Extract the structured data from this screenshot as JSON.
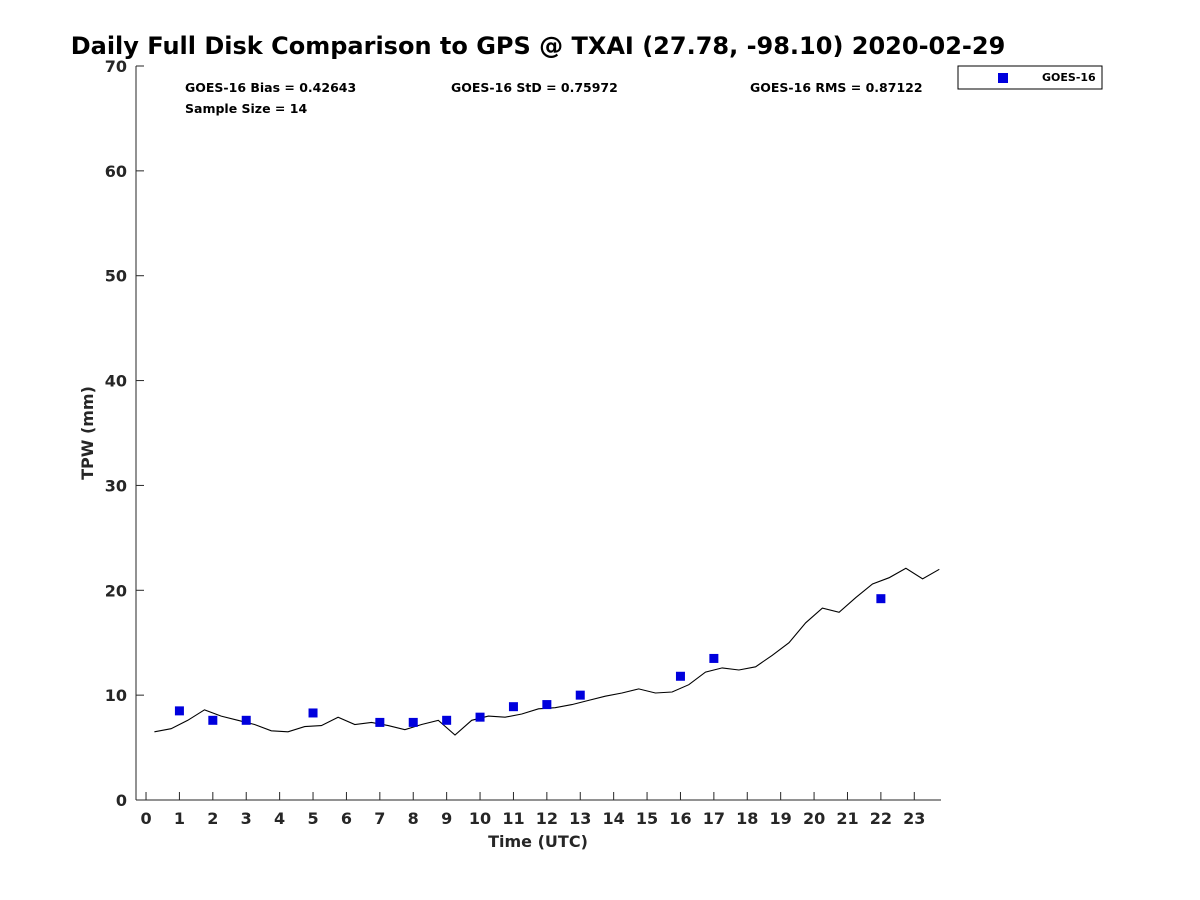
{
  "chart_data": {
    "type": "scatter",
    "title": "Daily Full Disk Comparison to GPS @ TXAI (27.78, -98.10) 2020-02-29",
    "xlabel": "Time (UTC)",
    "ylabel": "TPW (mm)",
    "xlim": [
      -0.3,
      23.8
    ],
    "ylim": [
      0,
      70
    ],
    "xticks": [
      0,
      1,
      2,
      3,
      4,
      5,
      6,
      7,
      8,
      9,
      10,
      11,
      12,
      13,
      14,
      15,
      16,
      17,
      18,
      19,
      20,
      21,
      22,
      23
    ],
    "yticks": [
      0,
      10,
      20,
      30,
      40,
      50,
      60,
      70
    ],
    "grid": false,
    "legend_position": "top-right",
    "stats": {
      "bias": "GOES-16 Bias = 0.42643",
      "std": "GOES-16 StD = 0.75972",
      "rms": "GOES-16 RMS = 0.87122",
      "sample": "Sample Size = 14"
    },
    "series": [
      {
        "name": "GOES-16",
        "kind": "scatter",
        "color": "#0000dd",
        "marker": "square",
        "points": [
          [
            1.0,
            8.5
          ],
          [
            2.0,
            7.6
          ],
          [
            3.0,
            7.6
          ],
          [
            5.0,
            8.3
          ],
          [
            7.0,
            7.4
          ],
          [
            8.0,
            7.4
          ],
          [
            9.0,
            7.6
          ],
          [
            10.0,
            7.9
          ],
          [
            11.0,
            8.9
          ],
          [
            12.0,
            9.1
          ],
          [
            13.0,
            10.0
          ],
          [
            16.0,
            11.8
          ],
          [
            17.0,
            13.5
          ],
          [
            22.0,
            19.2
          ]
        ]
      },
      {
        "kind": "line",
        "color": "#000000",
        "points": [
          [
            0.25,
            6.5
          ],
          [
            0.75,
            6.8
          ],
          [
            1.25,
            7.6
          ],
          [
            1.75,
            8.6
          ],
          [
            2.25,
            8.0
          ],
          [
            2.75,
            7.6
          ],
          [
            3.25,
            7.2
          ],
          [
            3.75,
            6.6
          ],
          [
            4.25,
            6.5
          ],
          [
            4.75,
            7.0
          ],
          [
            5.25,
            7.1
          ],
          [
            5.75,
            7.9
          ],
          [
            6.25,
            7.2
          ],
          [
            6.75,
            7.4
          ],
          [
            7.25,
            7.1
          ],
          [
            7.75,
            6.7
          ],
          [
            8.25,
            7.2
          ],
          [
            8.75,
            7.6
          ],
          [
            9.25,
            6.2
          ],
          [
            9.75,
            7.6
          ],
          [
            10.25,
            8.0
          ],
          [
            10.75,
            7.9
          ],
          [
            11.25,
            8.2
          ],
          [
            11.75,
            8.7
          ],
          [
            12.25,
            8.8
          ],
          [
            12.75,
            9.1
          ],
          [
            13.25,
            9.5
          ],
          [
            13.75,
            9.9
          ],
          [
            14.25,
            10.2
          ],
          [
            14.75,
            10.6
          ],
          [
            15.25,
            10.2
          ],
          [
            15.75,
            10.3
          ],
          [
            16.25,
            11.0
          ],
          [
            16.75,
            12.2
          ],
          [
            17.25,
            12.6
          ],
          [
            17.75,
            12.4
          ],
          [
            18.25,
            12.7
          ],
          [
            18.75,
            13.8
          ],
          [
            19.25,
            15.0
          ],
          [
            19.75,
            16.9
          ],
          [
            20.25,
            18.3
          ],
          [
            20.75,
            17.9
          ],
          [
            21.25,
            19.3
          ],
          [
            21.75,
            20.6
          ],
          [
            22.25,
            21.2
          ],
          [
            22.75,
            22.1
          ],
          [
            23.25,
            21.1
          ],
          [
            23.75,
            22.0
          ]
        ]
      }
    ]
  }
}
